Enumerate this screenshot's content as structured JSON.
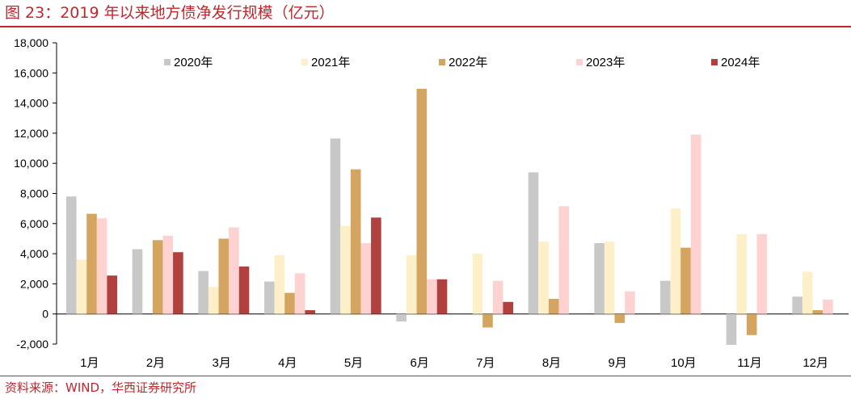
{
  "header": {
    "title": "图 23：2019 年以来地方债净发行规模（亿元）"
  },
  "footer": {
    "source": "资料来源：WIND，华西证券研究所"
  },
  "chart_data": {
    "type": "bar",
    "title": "",
    "xlabel": "",
    "ylabel": "",
    "ylim": [
      -2000,
      18000
    ],
    "yticks": [
      -2000,
      0,
      2000,
      4000,
      6000,
      8000,
      10000,
      12000,
      14000,
      16000,
      18000
    ],
    "ytick_labels": [
      "-2,000",
      "0",
      "2,000",
      "4,000",
      "6,000",
      "8,000",
      "10,000",
      "12,000",
      "14,000",
      "16,000",
      "18,000"
    ],
    "grid": false,
    "legend_position": "top",
    "categories": [
      "1月",
      "2月",
      "3月",
      "4月",
      "5月",
      "6月",
      "7月",
      "8月",
      "9月",
      "10月",
      "11月",
      "12月"
    ],
    "series": [
      {
        "name": "2020年",
        "color": "#c8c8c8",
        "values": [
          7800,
          4300,
          2850,
          2150,
          11650,
          -500,
          0,
          9400,
          4700,
          2200,
          -2050,
          1150
        ]
      },
      {
        "name": "2021年",
        "color": "#fdf0c8",
        "values": [
          3600,
          0,
          1800,
          3900,
          5850,
          3900,
          4000,
          4800,
          4800,
          7000,
          5300,
          2800
        ]
      },
      {
        "name": "2022年",
        "color": "#d4a560",
        "values": [
          6650,
          4900,
          5000,
          1400,
          9600,
          14950,
          -900,
          1000,
          -600,
          4400,
          -1400,
          250
        ]
      },
      {
        "name": "2023年",
        "color": "#ffd2d2",
        "values": [
          6350,
          5200,
          5750,
          2700,
          4700,
          2300,
          2200,
          7150,
          1500,
          11900,
          5300,
          950
        ]
      },
      {
        "name": "2024年",
        "color": "#b0413e",
        "values": [
          2550,
          4100,
          3150,
          250,
          6400,
          2300,
          800,
          null,
          null,
          null,
          null,
          null
        ]
      }
    ]
  }
}
